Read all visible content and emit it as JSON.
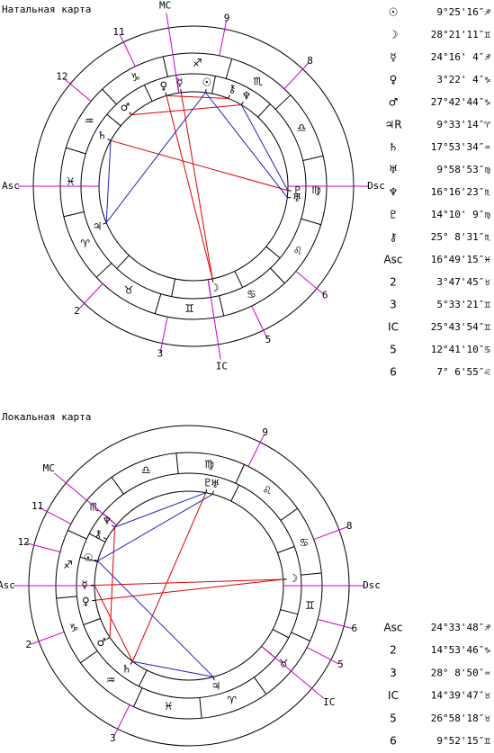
{
  "natal": {
    "title": "Натальная карта",
    "house_labels": [
      "Asc",
      "2",
      "3",
      "IC",
      "5",
      "6",
      "Dsc",
      "8",
      "9",
      "MC",
      "11",
      "12"
    ],
    "signs": [
      "♈",
      "♉",
      "♊",
      "♋",
      "♌",
      "♍",
      "♎",
      "♏",
      "♐",
      "♑",
      "♒",
      "♓"
    ],
    "planets": [
      "☉",
      "☽",
      "☿",
      "♀",
      "♂",
      "♃",
      "♄",
      "♅",
      "♆",
      "♇",
      "⚷"
    ],
    "positions": [
      {
        "symbol": "☉",
        "value": "9°25'16″♐"
      },
      {
        "symbol": "☽",
        "value": "28°21'11″♊"
      },
      {
        "symbol": "☿",
        "value": "24°16' 4″♐"
      },
      {
        "symbol": "♀",
        "value": "3°22' 4″♑"
      },
      {
        "symbol": "♂",
        "value": "27°42'44″♑"
      },
      {
        "symbol": "♃R",
        "value": "9°33'14″♈"
      },
      {
        "symbol": "♄",
        "value": "17°53'34″♒"
      },
      {
        "symbol": "♅",
        "value": "9°58'53″♍"
      },
      {
        "symbol": "♆",
        "value": "16°16'23″♏"
      },
      {
        "symbol": "♇",
        "value": "14°10' 9″♍"
      },
      {
        "symbol": "⚷",
        "value": "25° 8'31″♏"
      },
      {
        "symbol": "Asc",
        "value": "16°49'15″♓"
      },
      {
        "symbol": "2",
        "value": "3°47'45″♉"
      },
      {
        "symbol": "3",
        "value": "5°33'21″♊"
      },
      {
        "symbol": "IC",
        "value": "25°43'54″♊"
      },
      {
        "symbol": "5",
        "value": "12°41'10″♋"
      },
      {
        "symbol": "6",
        "value": "7° 6'55″♌"
      }
    ]
  },
  "local": {
    "title": "Локальная карта",
    "house_labels": [
      "Asc",
      "2",
      "3",
      "IC",
      "5",
      "6",
      "Dsc",
      "8",
      "9",
      "MC",
      "11",
      "12"
    ],
    "signs": [
      "♈",
      "♉",
      "♊",
      "♋",
      "♌",
      "♍",
      "♎",
      "♏",
      "♐",
      "♑",
      "♒",
      "♓"
    ],
    "planets": [
      "☉",
      "☽",
      "☿",
      "♀",
      "♂",
      "♃",
      "♄",
      "♅",
      "♆",
      "♇",
      "⚷"
    ],
    "positions": [
      {
        "symbol": "Asc",
        "value": "24°33'48″♐"
      },
      {
        "symbol": "2",
        "value": "14°53'46″♑"
      },
      {
        "symbol": "3",
        "value": "28° 8'50″♒"
      },
      {
        "symbol": "IC",
        "value": "14°39'47″♉"
      },
      {
        "symbol": "5",
        "value": "26°58'18″♉"
      },
      {
        "symbol": "6",
        "value": "9°52'15″♊"
      }
    ]
  }
}
